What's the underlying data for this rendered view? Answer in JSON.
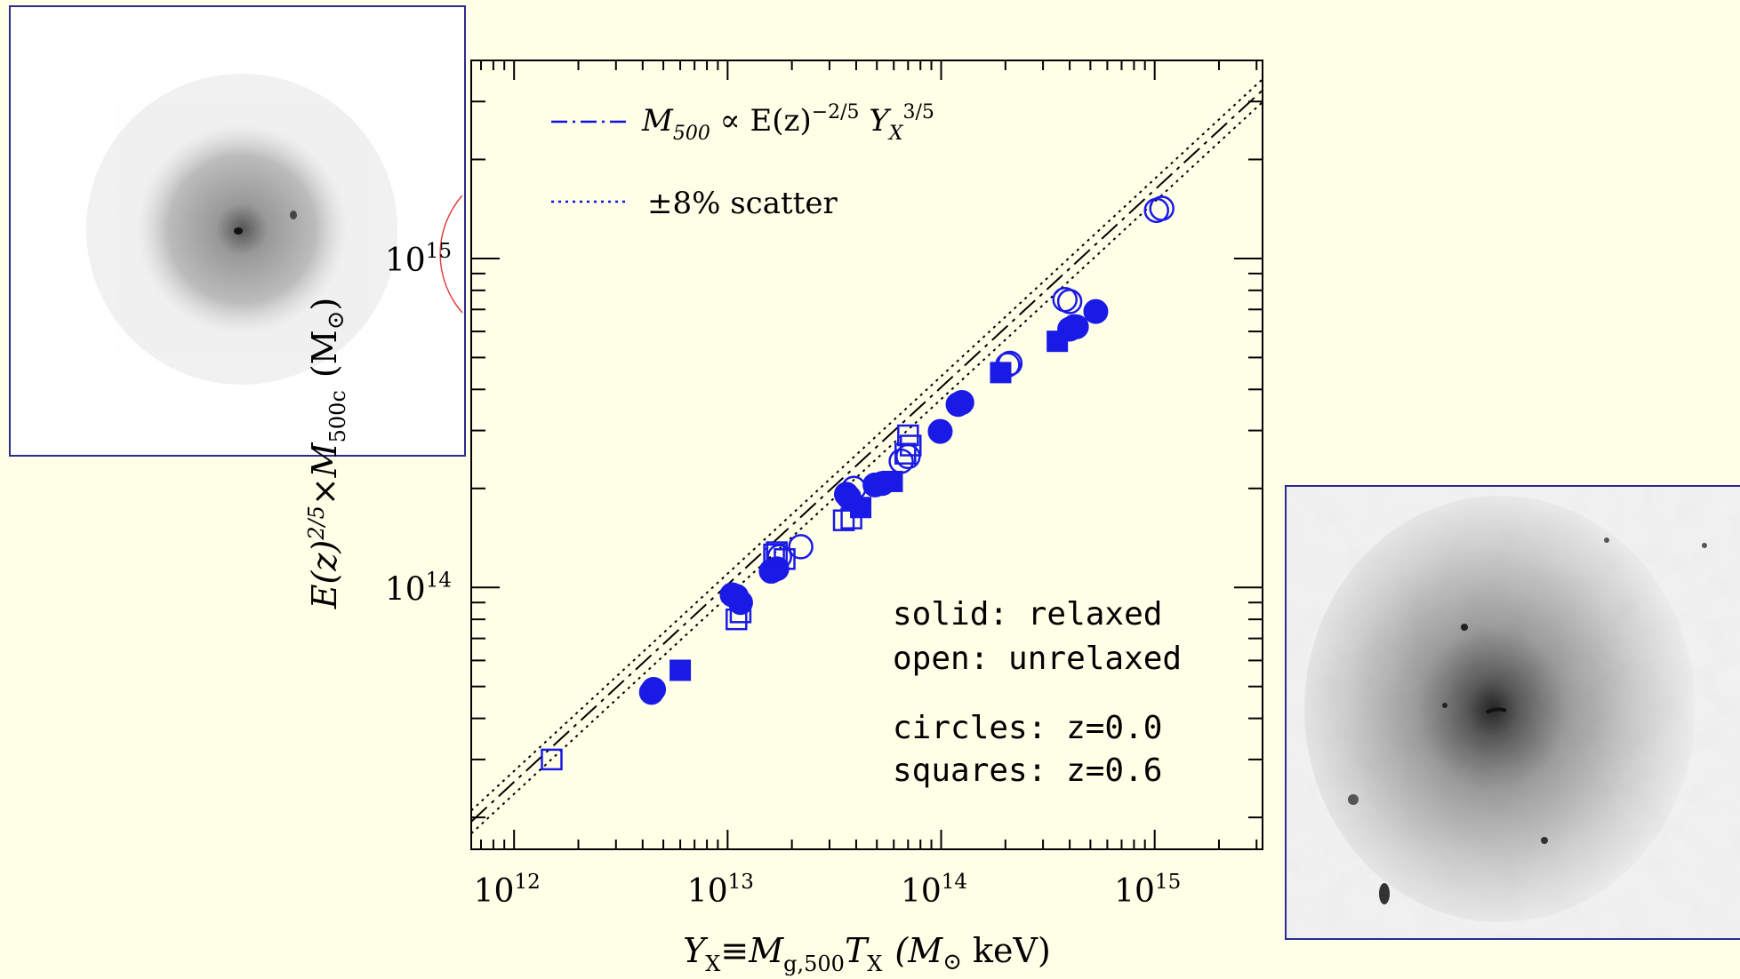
{
  "chart_data": {
    "type": "scatter",
    "x_scale": "log",
    "y_scale": "log",
    "xlim": [
      630000000000.0,
      3200000000000000.0
    ],
    "ylim": [
      16000000000000.0,
      4000000000000000.0
    ],
    "grid": false,
    "xlabel": {
      "main": "Y",
      "sub1": "X",
      "eq": "≡M",
      "sub2": "g,500",
      "t": "T",
      "sub3": "X",
      "unit": "(M",
      "sun": "⊙",
      "unit2": " keV)"
    },
    "ylabel": {
      "main": "E(z)",
      "exp": "2/5",
      "times": "×M",
      "sub": "500c",
      "unit": "(M",
      "sun": "⊙",
      "unit2": ")"
    },
    "x_ticks": [
      {
        "value": 1000000000000.0,
        "base": "10",
        "exp": "12"
      },
      {
        "value": 10000000000000.0,
        "base": "10",
        "exp": "13"
      },
      {
        "value": 100000000000000.0,
        "base": "10",
        "exp": "14"
      },
      {
        "value": 1000000000000000.0,
        "base": "10",
        "exp": "15"
      }
    ],
    "y_ticks": [
      {
        "value": 100000000000000.0,
        "base": "10",
        "exp": "14"
      },
      {
        "value": 1000000000000000.0,
        "base": "10",
        "exp": "15"
      }
    ],
    "relation": {
      "norm": 102000000000000.0,
      "slope": 0.6,
      "pivot": 10000000000000.0,
      "scatter": 0.08
    },
    "legend": [
      {
        "style": "dash-dot",
        "text_pre": "M",
        "text_sub": "500",
        "text_post": " ∝ E(z)",
        "text_exp1": "−2/5",
        "text_y": " Y",
        "text_ysub": "X",
        "text_exp2": "3/5"
      },
      {
        "style": "dotted",
        "text": "±8% scatter"
      }
    ],
    "notes": [
      "solid: relaxed",
      "open: unrelaxed",
      "circles: z=0.0",
      "squares: z=0.6"
    ],
    "series": [
      {
        "marker": "circle",
        "fill": "solid",
        "points": [
          [
            4500000000000.0,
            49000000000000.0
          ],
          [
            4400000000000.0,
            48000000000000.0
          ],
          [
            10500000000000.0,
            95000000000000.0
          ],
          [
            11000000000000.0,
            94000000000000.0
          ],
          [
            11500000000000.0,
            90000000000000.0
          ],
          [
            16000000000000.0,
            112000000000000.0
          ],
          [
            17000000000000.0,
            114000000000000.0
          ],
          [
            36000000000000.0,
            192000000000000.0
          ],
          [
            37000000000000.0,
            188000000000000.0
          ],
          [
            49000000000000.0,
            205000000000000.0
          ],
          [
            53000000000000.0,
            207000000000000.0
          ],
          [
            99000000000000.0,
            298000000000000.0
          ],
          [
            125000000000000.0,
            365000000000000.0
          ],
          [
            120000000000000.0,
            360000000000000.0
          ],
          [
            400000000000000.0,
            610000000000000.0
          ],
          [
            430000000000000.0,
            620000000000000.0
          ],
          [
            530000000000000.0,
            690000000000000.0
          ]
        ]
      },
      {
        "marker": "circle",
        "fill": "open",
        "points": [
          [
            17500000000000.0,
            124000000000000.0
          ],
          [
            22000000000000.0,
            133000000000000.0
          ],
          [
            39000000000000.0,
            200000000000000.0
          ],
          [
            65000000000000.0,
            242000000000000.0
          ],
          [
            70000000000000.0,
            250000000000000.0
          ],
          [
            210000000000000.0,
            480000000000000.0
          ],
          [
            205000000000000.0,
            475000000000000.0
          ],
          [
            380000000000000.0,
            750000000000000.0
          ],
          [
            400000000000000.0,
            740000000000000.0
          ],
          [
            420000000000000.0,
            620000000000000.0
          ],
          [
            1020000000000000.0,
            1400000000000000.0
          ],
          [
            1080000000000000.0,
            1420000000000000.0
          ]
        ]
      },
      {
        "marker": "square",
        "fill": "solid",
        "points": [
          [
            6000000000000.0,
            56000000000000.0
          ],
          [
            42000000000000.0,
            175000000000000.0
          ],
          [
            59000000000000.0,
            210000000000000.0
          ],
          [
            190000000000000.0,
            450000000000000.0
          ],
          [
            350000000000000.0,
            560000000000000.0
          ]
        ]
      },
      {
        "marker": "square",
        "fill": "open",
        "points": [
          [
            1500000000000.0,
            30000000000000.0
          ],
          [
            11000000000000.0,
            80000000000000.0
          ],
          [
            11500000000000.0,
            84000000000000.0
          ],
          [
            17000000000000.0,
            128000000000000.0
          ],
          [
            18500000000000.0,
            122000000000000.0
          ],
          [
            16500000000000.0,
            126000000000000.0
          ],
          [
            35000000000000.0,
            160000000000000.0
          ],
          [
            38000000000000.0,
            162000000000000.0
          ],
          [
            68000000000000.0,
            255000000000000.0
          ],
          [
            70000000000000.0,
            290000000000000.0
          ],
          [
            72000000000000.0,
            270000000000000.0
          ]
        ]
      }
    ]
  }
}
